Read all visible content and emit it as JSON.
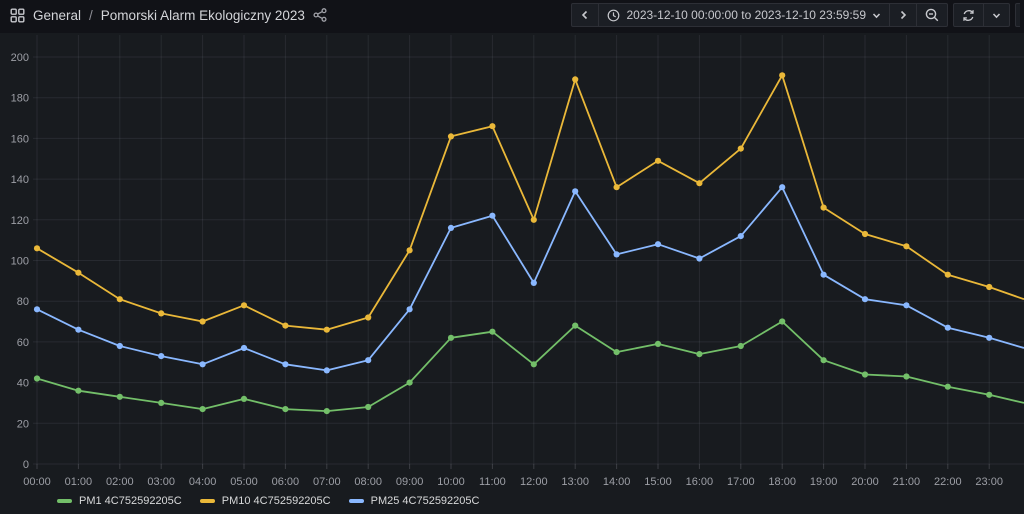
{
  "header": {
    "breadcrumb": {
      "section": "General",
      "separator": "/",
      "dashboard": "Pomorski Alarm Ekologiczny 2023"
    },
    "time_range": {
      "label": "2023-12-10 00:00:00 to 2023-12-10 23:59:59"
    }
  },
  "chart_data": {
    "type": "line",
    "title": "",
    "xlabel": "",
    "ylabel": "",
    "ylim": [
      0,
      200
    ],
    "yticks": [
      0,
      20,
      40,
      60,
      80,
      100,
      120,
      140,
      160,
      180,
      200
    ],
    "grid": true,
    "legend_position": "bottom-left",
    "categories": [
      "00:00",
      "01:00",
      "02:00",
      "03:00",
      "04:00",
      "05:00",
      "06:00",
      "07:00",
      "08:00",
      "09:00",
      "10:00",
      "11:00",
      "12:00",
      "13:00",
      "14:00",
      "15:00",
      "16:00",
      "17:00",
      "18:00",
      "19:00",
      "20:00",
      "21:00",
      "22:00",
      "23:00"
    ],
    "series": [
      {
        "name": "PM1 4C752592205C",
        "color": "#73BF69",
        "values": [
          42,
          36,
          33,
          30,
          27,
          32,
          27,
          26,
          28,
          40,
          62,
          65,
          49,
          68,
          55,
          59,
          54,
          58,
          70,
          51,
          44,
          43,
          38,
          34
        ],
        "right_edge_value": 30
      },
      {
        "name": "PM10 4C752592205C",
        "color": "#EAB839",
        "values": [
          106,
          94,
          81,
          74,
          70,
          78,
          68,
          66,
          72,
          105,
          161,
          166,
          120,
          189,
          136,
          149,
          138,
          155,
          191,
          126,
          113,
          107,
          93,
          87
        ],
        "right_edge_value": 81
      },
      {
        "name": "PM25 4C752592205C",
        "color": "#8AB8FF",
        "values": [
          76,
          66,
          58,
          53,
          49,
          57,
          49,
          46,
          51,
          76,
          116,
          122,
          89,
          134,
          103,
          108,
          101,
          112,
          136,
          93,
          81,
          78,
          67,
          62
        ],
        "right_edge_value": 57
      }
    ]
  }
}
